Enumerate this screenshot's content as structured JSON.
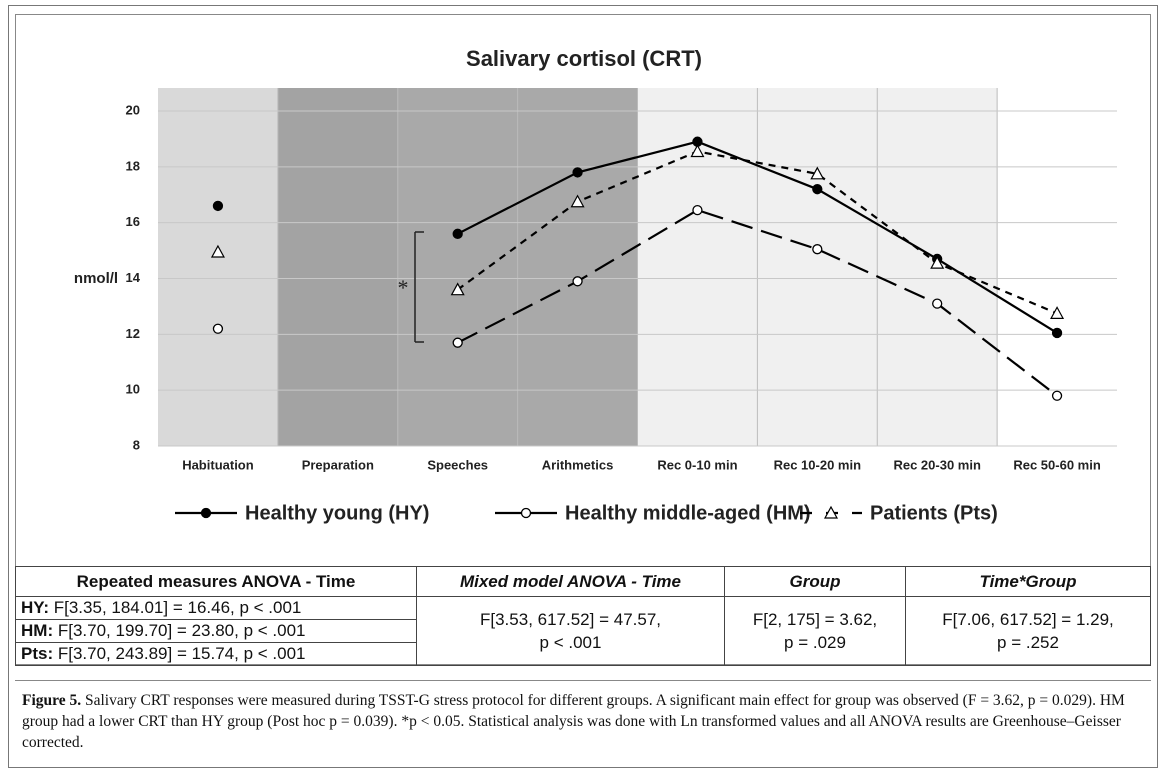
{
  "chart_data": {
    "type": "line",
    "title": "Salivary cortisol (CRT)",
    "y_label": "nmol/l",
    "categories": [
      "Habituation",
      "Preparation",
      "Speeches",
      "Arithmetics",
      "Rec 0-10 min",
      "Rec 10-20 min",
      "Rec 20-30 min",
      "Rec 50-60 min"
    ],
    "series": [
      {
        "name": "Healthy young (HY)",
        "color": "#000000",
        "line_style": "solid",
        "marker": "filled-circle",
        "values": [
          16.6,
          null,
          15.6,
          17.8,
          18.9,
          17.2,
          14.7,
          12.05
        ]
      },
      {
        "name": "Healthy middle-aged (HM)",
        "color": "#000000",
        "line_style": "long-dash",
        "marker": "open-circle",
        "values": [
          12.2,
          null,
          11.7,
          13.9,
          16.45,
          15.05,
          13.1,
          9.8
        ]
      },
      {
        "name": "Patients (Pts)",
        "color": "#000000",
        "line_style": "short-dash",
        "marker": "open-triangle",
        "values": [
          14.95,
          null,
          13.6,
          16.75,
          18.55,
          17.75,
          14.55,
          12.75
        ]
      }
    ],
    "annotation": "*",
    "ylim": [
      8,
      20
    ],
    "yticks": [
      8,
      10,
      12,
      14,
      16,
      18,
      20
    ],
    "grid": true,
    "legend": "bottom"
  },
  "table": {
    "header": [
      "Repeated measures ANOVA - Time",
      "Mixed model ANOVA - Time",
      "Group",
      "Time*Group"
    ],
    "rows": [
      {
        "group": "HY:",
        "stat": "F[3.35, 184.01] = 16.46, p < .001"
      },
      {
        "group": "HM:",
        "stat": "F[3.70, 199.70] = 23.80, p < .001"
      },
      {
        "group": "Pts:",
        "stat": "F[3.70, 243.89] = 15.74, p < .001"
      }
    ],
    "mixed": [
      "F[3.53, 617.52] = 47.57,",
      "p < .001"
    ],
    "group": [
      "F[2, 175] = 3.62,",
      "p = .029"
    ],
    "interaction": [
      "F[7.06, 617.52] = 1.29,",
      "p = .252"
    ]
  },
  "caption": {
    "label": "Figure 5.",
    "text": "Salivary CRT responses were measured during TSST-G stress protocol for different groups. A significant main effect for group was observed (F = 3.62, p = 0.029). HM group had a lower CRT than HY group (Post hoc p = 0.039). *p < 0.05. Statistical analysis was done with Ln transformed values and all ANOVA results are Greenhouse–Geisser corrected."
  }
}
